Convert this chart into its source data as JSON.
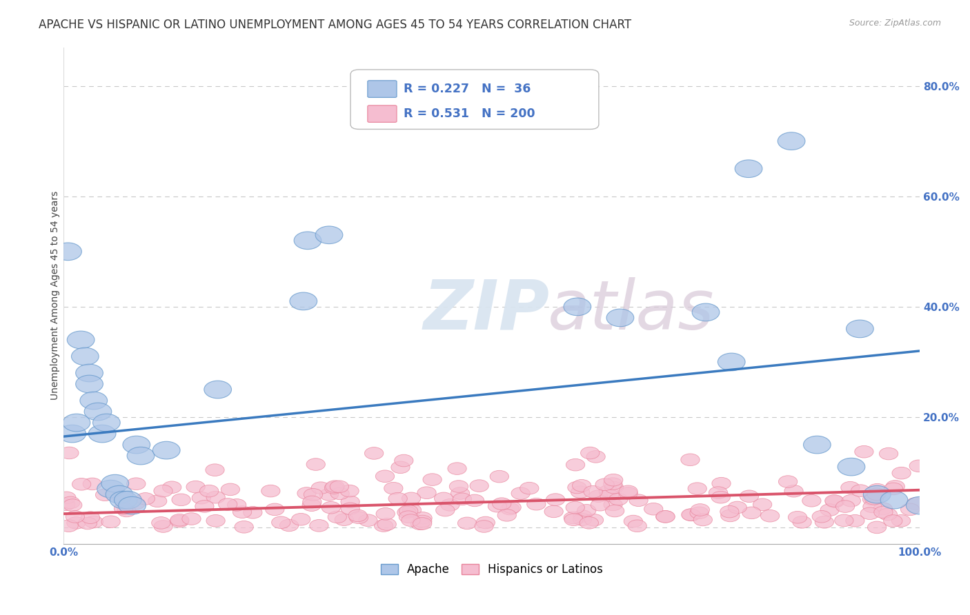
{
  "title": "APACHE VS HISPANIC OR LATINO UNEMPLOYMENT AMONG AGES 45 TO 54 YEARS CORRELATION CHART",
  "source": "Source: ZipAtlas.com",
  "ylabel": "Unemployment Among Ages 45 to 54 years",
  "xlim": [
    0,
    1
  ],
  "ylim": [
    -0.03,
    0.87
  ],
  "apache_color": "#aec6e8",
  "apache_edge_color": "#6699cc",
  "apache_line_color": "#3a7abf",
  "apache_R": 0.227,
  "apache_N": 36,
  "hispanic_color": "#f5bdd0",
  "hispanic_edge_color": "#e8829a",
  "hispanic_line_color": "#d9536a",
  "hispanic_R": 0.531,
  "hispanic_N": 200,
  "tick_color": "#4472c4",
  "watermark_zip": "ZIP",
  "watermark_atlas": "atlas",
  "background_color": "#ffffff",
  "grid_color": "#c8c8c8",
  "title_fontsize": 12,
  "axis_fontsize": 10,
  "tick_fontsize": 11
}
